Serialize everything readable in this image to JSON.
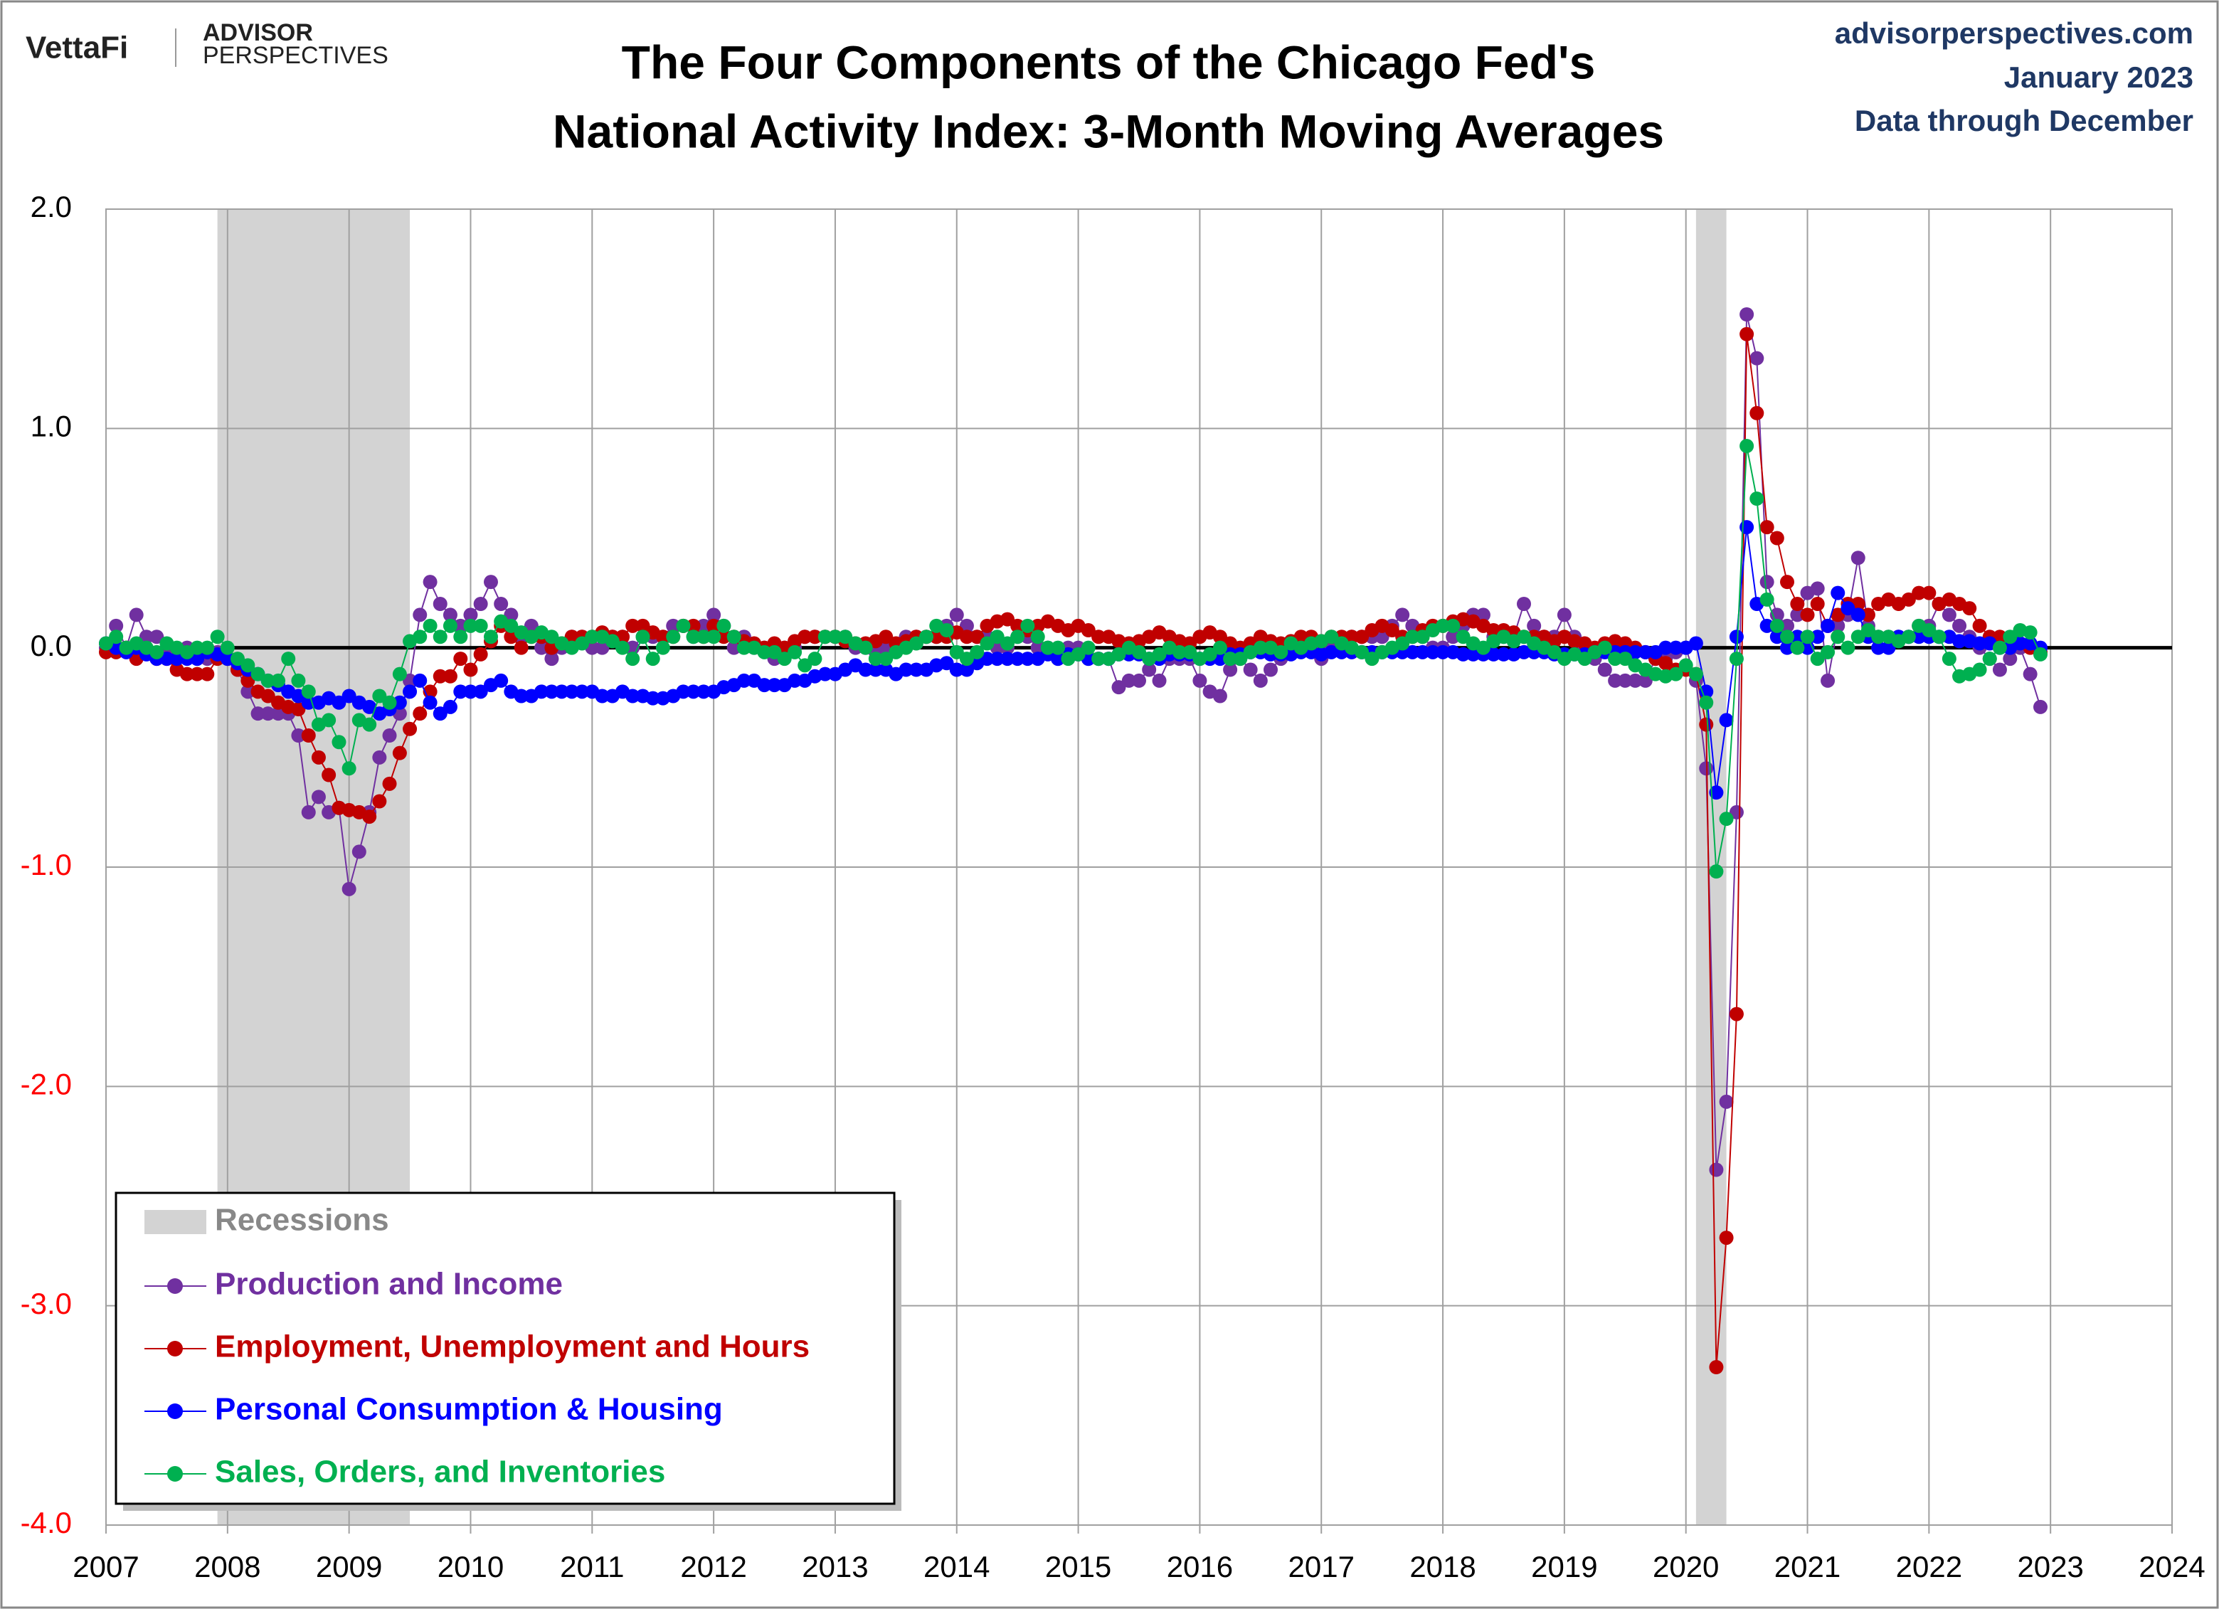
{
  "header": {
    "logo": "VettaFi",
    "brand": [
      "ADVISOR",
      "PERSPECTIVES"
    ],
    "source": [
      "advisorperspectives.com",
      "January 2023",
      "Data through December"
    ]
  },
  "chart_data": {
    "type": "line",
    "markers": true,
    "title": [
      "The Four Components of the Chicago Fed's",
      "National Activity Index: 3-Month Moving Averages"
    ],
    "x": [
      2007,
      2007.083,
      2007.167,
      2007.25,
      2007.333,
      2007.417,
      2007.5,
      2007.583,
      2007.667,
      2007.75,
      2007.833,
      2007.917,
      2008,
      2008.083,
      2008.167,
      2008.25,
      2008.333,
      2008.417,
      2008.5,
      2008.583,
      2008.667,
      2008.75,
      2008.833,
      2008.917,
      2009,
      2009.083,
      2009.167,
      2009.25,
      2009.333,
      2009.417,
      2009.5,
      2009.583,
      2009.667,
      2009.75,
      2009.833,
      2009.917,
      2010,
      2010.083,
      2010.167,
      2010.25,
      2010.333,
      2010.417,
      2010.5,
      2010.583,
      2010.667,
      2010.75,
      2010.833,
      2010.917,
      2011,
      2011.083,
      2011.167,
      2011.25,
      2011.333,
      2011.417,
      2011.5,
      2011.583,
      2011.667,
      2011.75,
      2011.833,
      2011.917,
      2012,
      2012.083,
      2012.167,
      2012.25,
      2012.333,
      2012.417,
      2012.5,
      2012.583,
      2012.667,
      2012.75,
      2012.833,
      2012.917,
      2013,
      2013.083,
      2013.167,
      2013.25,
      2013.333,
      2013.417,
      2013.5,
      2013.583,
      2013.667,
      2013.75,
      2013.833,
      2013.917,
      2014,
      2014.083,
      2014.167,
      2014.25,
      2014.333,
      2014.417,
      2014.5,
      2014.583,
      2014.667,
      2014.75,
      2014.833,
      2014.917,
      2015,
      2015.083,
      2015.167,
      2015.25,
      2015.333,
      2015.417,
      2015.5,
      2015.583,
      2015.667,
      2015.75,
      2015.833,
      2015.917,
      2016,
      2016.083,
      2016.167,
      2016.25,
      2016.333,
      2016.417,
      2016.5,
      2016.583,
      2016.667,
      2016.75,
      2016.833,
      2016.917,
      2017,
      2017.083,
      2017.167,
      2017.25,
      2017.333,
      2017.417,
      2017.5,
      2017.583,
      2017.667,
      2017.75,
      2017.833,
      2017.917,
      2018,
      2018.083,
      2018.167,
      2018.25,
      2018.333,
      2018.417,
      2018.5,
      2018.583,
      2018.667,
      2018.75,
      2018.833,
      2018.917,
      2019,
      2019.083,
      2019.167,
      2019.25,
      2019.333,
      2019.417,
      2019.5,
      2019.583,
      2019.667,
      2019.75,
      2019.833,
      2019.917,
      2020,
      2020.083,
      2020.167,
      2020.25,
      2020.333,
      2020.417,
      2020.5,
      2020.583,
      2020.667,
      2020.75,
      2020.833,
      2020.917,
      2021,
      2021.083,
      2021.167,
      2021.25,
      2021.333,
      2021.417,
      2021.5,
      2021.583,
      2021.667,
      2021.75,
      2021.833,
      2021.917,
      2022,
      2022.083,
      2022.167,
      2022.25,
      2022.333,
      2022.417,
      2022.5,
      2022.583,
      2022.667,
      2022.75,
      2022.833,
      2022.917
    ],
    "series": [
      {
        "name": "Production and Income",
        "color": "#7030a0",
        "values": [
          0.0,
          0.1,
          0.0,
          0.15,
          0.05,
          0.05,
          0.0,
          -0.02,
          0.0,
          -0.05,
          -0.05,
          -0.02,
          -0.05,
          -0.1,
          -0.2,
          -0.3,
          -0.3,
          -0.3,
          -0.3,
          -0.4,
          -0.75,
          -0.68,
          -0.75,
          -0.73,
          -1.1,
          -0.93,
          -0.75,
          -0.5,
          -0.4,
          -0.3,
          -0.15,
          0.15,
          0.3,
          0.2,
          0.15,
          0.1,
          0.15,
          0.2,
          0.3,
          0.2,
          0.15,
          0.05,
          0.1,
          0.0,
          -0.05,
          0.0,
          0.05,
          0.05,
          0.0,
          0.0,
          0.05,
          0.05,
          0.0,
          0.05,
          0.05,
          0.05,
          0.1,
          0.1,
          0.05,
          0.1,
          0.15,
          0.1,
          0.0,
          0.05,
          0.0,
          0.0,
          -0.05,
          0.0,
          0.0,
          0.05,
          0.05,
          0.05,
          0.05,
          0.05,
          0.0,
          0.0,
          -0.02,
          0.0,
          0.0,
          0.05,
          0.05,
          0.05,
          0.05,
          0.1,
          0.15,
          0.1,
          0.05,
          0.05,
          0.0,
          0.0,
          0.05,
          0.05,
          0.0,
          0.0,
          -0.05,
          0.0,
          0.0,
          -0.05,
          -0.05,
          -0.05,
          -0.18,
          -0.15,
          -0.15,
          -0.1,
          -0.15,
          -0.05,
          -0.05,
          -0.05,
          -0.15,
          -0.2,
          -0.22,
          -0.1,
          -0.05,
          -0.1,
          -0.15,
          -0.1,
          -0.05,
          0.0,
          0.0,
          0.0,
          -0.05,
          0.0,
          0.0,
          0.05,
          0.05,
          0.05,
          0.05,
          0.1,
          0.15,
          0.1,
          0.05,
          0.0,
          0.0,
          0.05,
          0.1,
          0.15,
          0.15,
          0.05,
          0.05,
          0.05,
          0.2,
          0.1,
          0.05,
          0.05,
          0.15,
          0.05,
          0.0,
          -0.05,
          -0.1,
          -0.15,
          -0.15,
          -0.15,
          -0.15,
          -0.05,
          -0.05,
          -0.02,
          0.0,
          -0.15,
          -0.55,
          -2.38,
          -2.07,
          -0.75,
          1.52,
          1.32,
          0.3,
          0.15,
          0.1,
          0.15,
          0.25,
          0.27,
          -0.15,
          0.1,
          0.15,
          0.41,
          0.1,
          0.05,
          0.05,
          0.05,
          0.05,
          0.1,
          0.1,
          0.2,
          0.15,
          0.1,
          0.05,
          0.0,
          -0.05,
          -0.1,
          -0.05,
          0.0,
          -0.12,
          -0.27
        ]
      },
      {
        "name": "Employment, Unemployment and Hours",
        "color": "#c00000",
        "values": [
          -0.02,
          -0.02,
          0.0,
          -0.05,
          -0.02,
          -0.05,
          -0.05,
          -0.1,
          -0.12,
          -0.12,
          -0.12,
          -0.05,
          -0.05,
          -0.1,
          -0.15,
          -0.2,
          -0.22,
          -0.25,
          -0.27,
          -0.28,
          -0.4,
          -0.5,
          -0.58,
          -0.73,
          -0.74,
          -0.75,
          -0.77,
          -0.7,
          -0.62,
          -0.48,
          -0.37,
          -0.3,
          -0.2,
          -0.13,
          -0.13,
          -0.05,
          -0.1,
          -0.03,
          0.03,
          0.1,
          0.05,
          0.0,
          0.05,
          0.05,
          0.0,
          0.02,
          0.05,
          0.05,
          0.05,
          0.07,
          0.05,
          0.05,
          0.1,
          0.1,
          0.07,
          0.05,
          0.05,
          0.1,
          0.1,
          0.05,
          0.1,
          0.05,
          0.05,
          0.03,
          0.02,
          0.0,
          0.02,
          0.0,
          0.03,
          0.05,
          0.05,
          0.05,
          0.05,
          0.03,
          0.02,
          0.02,
          0.03,
          0.05,
          0.02,
          0.03,
          0.05,
          0.05,
          0.05,
          0.05,
          0.07,
          0.05,
          0.05,
          0.1,
          0.12,
          0.13,
          0.1,
          0.08,
          0.1,
          0.12,
          0.1,
          0.08,
          0.1,
          0.08,
          0.05,
          0.05,
          0.03,
          0.02,
          0.03,
          0.05,
          0.07,
          0.05,
          0.03,
          0.02,
          0.05,
          0.07,
          0.05,
          0.02,
          0.0,
          0.02,
          0.05,
          0.03,
          0.02,
          0.03,
          0.05,
          0.05,
          0.03,
          0.05,
          0.05,
          0.05,
          0.05,
          0.08,
          0.1,
          0.08,
          0.05,
          0.05,
          0.08,
          0.1,
          0.1,
          0.12,
          0.13,
          0.12,
          0.1,
          0.08,
          0.08,
          0.07,
          0.05,
          0.05,
          0.05,
          0.03,
          0.05,
          0.03,
          0.02,
          0.0,
          0.02,
          0.03,
          0.02,
          0.0,
          -0.02,
          -0.05,
          -0.07,
          -0.1,
          -0.1,
          -0.12,
          -0.35,
          -3.28,
          -2.69,
          -1.67,
          1.43,
          1.07,
          0.55,
          0.5,
          0.3,
          0.2,
          0.15,
          0.2,
          0.1,
          0.15,
          0.2,
          0.2,
          0.15,
          0.2,
          0.22,
          0.2,
          0.22,
          0.25,
          0.25,
          0.2,
          0.22,
          0.2,
          0.18,
          0.1,
          0.05,
          0.05,
          0.02,
          0.02,
          0.0,
          -0.02
        ]
      },
      {
        "name": "Personal Consumption & Housing",
        "color": "#0000ff",
        "values": [
          0.02,
          0.0,
          -0.02,
          0.0,
          -0.03,
          -0.05,
          -0.05,
          -0.05,
          -0.05,
          -0.05,
          -0.02,
          -0.03,
          -0.05,
          -0.07,
          -0.1,
          -0.12,
          -0.15,
          -0.17,
          -0.2,
          -0.22,
          -0.25,
          -0.25,
          -0.23,
          -0.25,
          -0.22,
          -0.25,
          -0.27,
          -0.3,
          -0.28,
          -0.25,
          -0.2,
          -0.15,
          -0.25,
          -0.3,
          -0.27,
          -0.2,
          -0.2,
          -0.2,
          -0.17,
          -0.15,
          -0.2,
          -0.22,
          -0.22,
          -0.2,
          -0.2,
          -0.2,
          -0.2,
          -0.2,
          -0.2,
          -0.22,
          -0.22,
          -0.2,
          -0.22,
          -0.22,
          -0.23,
          -0.23,
          -0.22,
          -0.2,
          -0.2,
          -0.2,
          -0.2,
          -0.18,
          -0.17,
          -0.15,
          -0.15,
          -0.17,
          -0.17,
          -0.17,
          -0.15,
          -0.15,
          -0.13,
          -0.12,
          -0.12,
          -0.1,
          -0.08,
          -0.1,
          -0.1,
          -0.1,
          -0.12,
          -0.1,
          -0.1,
          -0.1,
          -0.08,
          -0.07,
          -0.1,
          -0.1,
          -0.07,
          -0.05,
          -0.05,
          -0.05,
          -0.05,
          -0.05,
          -0.05,
          -0.03,
          -0.05,
          -0.03,
          -0.03,
          -0.05,
          -0.05,
          -0.05,
          -0.03,
          -0.03,
          -0.03,
          -0.05,
          -0.05,
          -0.03,
          -0.03,
          -0.03,
          -0.05,
          -0.05,
          -0.05,
          -0.03,
          -0.03,
          -0.02,
          -0.02,
          -0.03,
          -0.03,
          -0.03,
          -0.02,
          -0.02,
          -0.03,
          -0.02,
          -0.02,
          -0.02,
          -0.02,
          -0.02,
          -0.02,
          -0.02,
          -0.02,
          -0.02,
          -0.02,
          -0.02,
          -0.02,
          -0.02,
          -0.03,
          -0.03,
          -0.03,
          -0.03,
          -0.03,
          -0.03,
          -0.02,
          -0.02,
          -0.02,
          -0.03,
          -0.03,
          -0.03,
          -0.03,
          -0.02,
          -0.02,
          -0.02,
          -0.02,
          -0.02,
          -0.02,
          -0.02,
          0.0,
          0.0,
          0.0,
          0.02,
          -0.2,
          -0.66,
          -0.33,
          0.05,
          0.55,
          0.2,
          0.1,
          0.05,
          0.0,
          0.05,
          0.0,
          0.05,
          0.1,
          0.25,
          0.18,
          0.15,
          0.05,
          0.0,
          0.0,
          0.05,
          0.05,
          0.05,
          0.05,
          0.05,
          0.05,
          0.03,
          0.03,
          0.02,
          0.02,
          0.0,
          0.0,
          0.02,
          0.02,
          0.0
        ]
      },
      {
        "name": "Sales, Orders, and Inventories",
        "color": "#00b050",
        "values": [
          0.02,
          0.05,
          0.0,
          0.02,
          0.0,
          -0.02,
          0.02,
          0.0,
          -0.02,
          0.0,
          0.0,
          0.05,
          0.0,
          -0.05,
          -0.08,
          -0.12,
          -0.15,
          -0.15,
          -0.05,
          -0.15,
          -0.2,
          -0.35,
          -0.33,
          -0.43,
          -0.55,
          -0.33,
          -0.35,
          -0.22,
          -0.25,
          -0.12,
          0.03,
          0.05,
          0.1,
          0.05,
          0.1,
          0.05,
          0.1,
          0.1,
          0.05,
          0.12,
          0.1,
          0.07,
          0.05,
          0.07,
          0.05,
          0.02,
          0.0,
          0.02,
          0.05,
          0.05,
          0.03,
          0.0,
          -0.05,
          0.05,
          -0.05,
          0.0,
          0.05,
          0.1,
          0.05,
          0.05,
          0.05,
          0.1,
          0.05,
          0.0,
          0.0,
          -0.02,
          -0.02,
          -0.05,
          -0.02,
          -0.08,
          -0.05,
          0.05,
          0.05,
          0.05,
          0.02,
          0.0,
          -0.05,
          -0.05,
          -0.02,
          0.0,
          0.02,
          0.05,
          0.1,
          0.08,
          -0.02,
          -0.05,
          -0.02,
          0.02,
          0.05,
          0.02,
          0.05,
          0.1,
          0.05,
          0.0,
          0.0,
          -0.05,
          -0.03,
          0.0,
          -0.05,
          -0.05,
          -0.03,
          0.0,
          -0.02,
          -0.05,
          -0.03,
          0.0,
          -0.02,
          -0.02,
          -0.05,
          -0.03,
          0.0,
          -0.05,
          -0.05,
          -0.02,
          0.0,
          0.0,
          -0.02,
          0.02,
          0.0,
          0.02,
          0.03,
          0.05,
          0.02,
          0.0,
          -0.02,
          -0.05,
          -0.02,
          0.0,
          0.02,
          0.05,
          0.05,
          0.08,
          0.1,
          0.1,
          0.05,
          0.02,
          0.0,
          0.03,
          0.05,
          0.03,
          0.05,
          0.02,
          0.0,
          -0.02,
          -0.05,
          -0.03,
          -0.05,
          -0.02,
          0.0,
          -0.05,
          -0.05,
          -0.08,
          -0.1,
          -0.12,
          -0.13,
          -0.12,
          -0.08,
          -0.12,
          -0.25,
          -1.02,
          -0.78,
          -0.05,
          0.92,
          0.68,
          0.22,
          0.1,
          0.05,
          0.0,
          0.05,
          -0.05,
          -0.02,
          0.05,
          0.0,
          0.05,
          0.08,
          0.05,
          0.05,
          0.03,
          0.05,
          0.1,
          0.08,
          0.05,
          -0.05,
          -0.13,
          -0.12,
          -0.1,
          -0.05,
          0.0,
          0.05,
          0.08,
          0.07,
          -0.03
        ]
      }
    ],
    "recessions": {
      "name": "Recessions",
      "color": "#d3d3d3",
      "ranges": [
        [
          2007.917,
          2009.5
        ],
        [
          2020.083,
          2020.333
        ]
      ]
    },
    "xlim": [
      2007,
      2024
    ],
    "xticks": [
      2007,
      2008,
      2009,
      2010,
      2011,
      2012,
      2013,
      2014,
      2015,
      2016,
      2017,
      2018,
      2019,
      2020,
      2021,
      2022,
      2023,
      2024
    ],
    "ylim": [
      -4,
      2
    ],
    "yticks": [
      {
        "value": 2,
        "label": "2.0"
      },
      {
        "value": 1,
        "label": "1.0"
      },
      {
        "value": 0,
        "label": "0.0"
      },
      {
        "value": -1,
        "label": "-1.0"
      },
      {
        "value": -2,
        "label": "-2.0"
      },
      {
        "value": -3,
        "label": "-3.0"
      },
      {
        "value": -4,
        "label": "-4.0"
      }
    ],
    "grid": true,
    "zero_line": true,
    "negative_tick_color": "#ff0000",
    "legend": "bottom-left"
  }
}
